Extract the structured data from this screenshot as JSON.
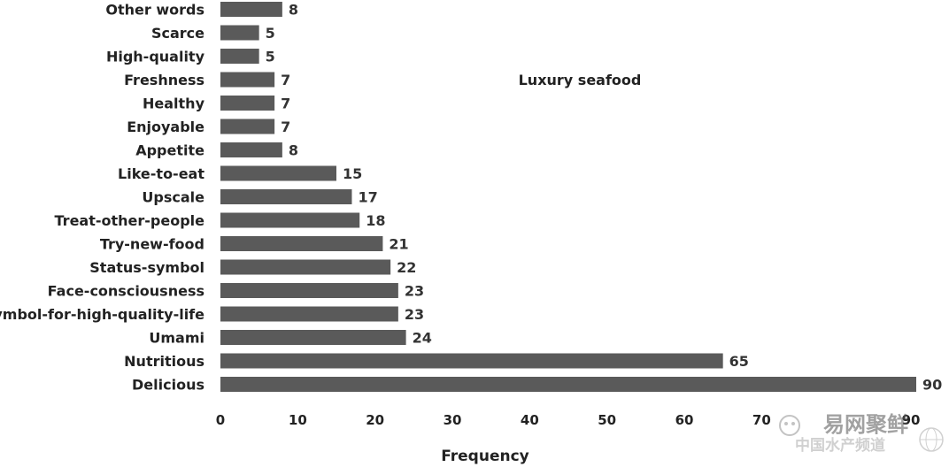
{
  "chart_data": {
    "type": "bar",
    "orientation": "horizontal",
    "annotation": "Luxury seafood",
    "xlabel": "Frequency",
    "ylabel": "",
    "xlim": [
      0,
      90
    ],
    "xticks": [
      0,
      10,
      20,
      30,
      40,
      50,
      60,
      70,
      80,
      90
    ],
    "grid": false,
    "legend": "none",
    "bar_color": "#5a5a5a",
    "categories": [
      "Other words",
      "Scarce",
      "High-quality",
      "Freshness",
      "Healthy",
      "Enjoyable",
      "Appetite",
      "Like-to-eat",
      "Upscale",
      "Treat-other-people",
      "Try-new-food",
      "Status-symbol",
      "Face-consciousness",
      "Symbol-for-high-quality-life",
      "Umami",
      "Nutritious",
      "Delicious"
    ],
    "values": [
      8,
      5,
      5,
      7,
      7,
      7,
      8,
      15,
      17,
      18,
      21,
      22,
      23,
      23,
      24,
      65,
      90
    ]
  },
  "watermark": {
    "line1": "易网聚鲜",
    "line2": "中国水产频道"
  }
}
